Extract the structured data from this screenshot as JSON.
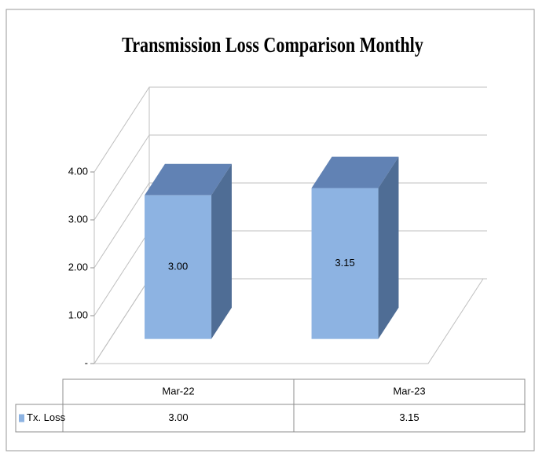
{
  "chart_data": {
    "type": "bar",
    "title": "Transmission Loss Comparison Monthly",
    "categories": [
      "Mar-22",
      "Mar-23"
    ],
    "series": [
      {
        "name": "Tx. Loss",
        "color": "#8db3e2",
        "values": [
          3.0,
          3.15
        ],
        "value_labels": [
          "3.00",
          "3.15"
        ]
      }
    ],
    "ylim": [
      0,
      4
    ],
    "yticks": [
      {
        "value": 0,
        "label": "-"
      },
      {
        "value": 1,
        "label": "1.00"
      },
      {
        "value": 2,
        "label": "2.00"
      },
      {
        "value": 3,
        "label": "3.00"
      },
      {
        "value": 4,
        "label": "4.00"
      }
    ],
    "grid": true
  }
}
